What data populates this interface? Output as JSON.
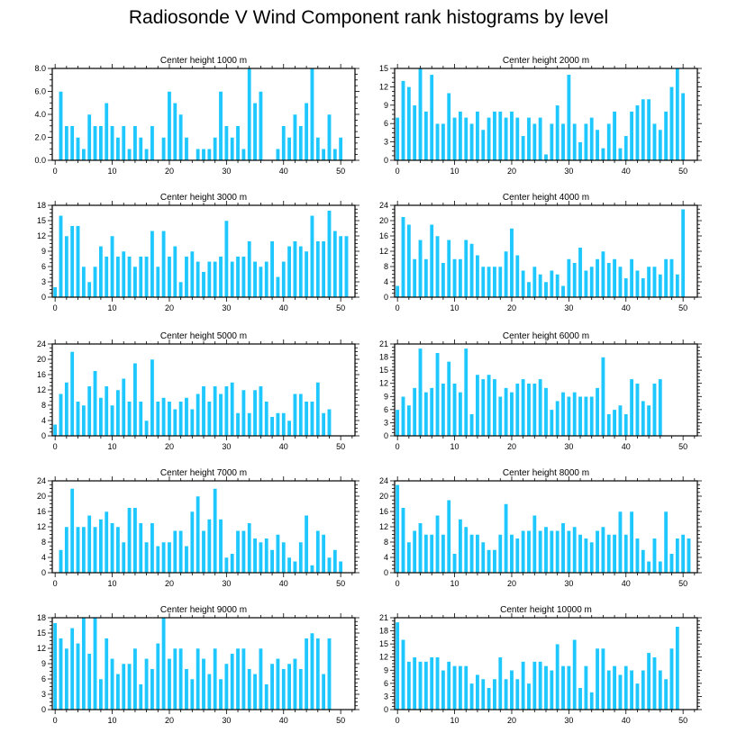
{
  "title": "Radiosonde V Wind Component rank histograms by level",
  "colors": {
    "bar": "#1ec8ff",
    "bar_stroke": "#ffffff",
    "axis": "#000000"
  },
  "chart_data": [
    {
      "type": "bar",
      "title": "Center height 1000 m",
      "ylim": [
        0,
        8
      ],
      "yticks": [
        0,
        2,
        4,
        6,
        8
      ],
      "ytick_labels": [
        "0.0",
        "2.0",
        "4.0",
        "6.0",
        "8.0"
      ],
      "xlim": [
        -0.5,
        52.5
      ],
      "xticks": [
        0,
        10,
        20,
        30,
        40,
        50
      ],
      "values": [
        0,
        6,
        3,
        3,
        2,
        1,
        4,
        3,
        3,
        5,
        3,
        2,
        3,
        1,
        3,
        2,
        1,
        3,
        0,
        2,
        6,
        5,
        4,
        2,
        0,
        1,
        1,
        1,
        2,
        6,
        3,
        2,
        3,
        1,
        8,
        5,
        6,
        0,
        0,
        1,
        3,
        2,
        4,
        3,
        5,
        8,
        2,
        1,
        4,
        1,
        2
      ]
    },
    {
      "type": "bar",
      "title": "Center height 2000 m",
      "ylim": [
        0,
        15
      ],
      "yticks": [
        0,
        3,
        6,
        9,
        12,
        15
      ],
      "ytick_labels": [
        "0",
        "3",
        "6",
        "9",
        "12",
        "15"
      ],
      "xlim": [
        -0.5,
        52.5
      ],
      "xticks": [
        0,
        10,
        20,
        30,
        40,
        50
      ],
      "values": [
        7,
        13,
        12,
        9,
        15,
        8,
        14,
        6,
        6,
        11,
        7,
        8,
        7,
        6,
        8,
        5,
        7,
        8,
        8,
        7,
        8,
        7,
        4,
        7,
        6,
        7,
        1,
        6,
        9,
        6,
        14,
        6,
        3,
        6,
        7,
        5,
        2,
        6,
        8,
        2,
        4,
        8,
        9,
        10,
        10,
        6,
        5,
        8,
        12,
        15,
        11
      ]
    },
    {
      "type": "bar",
      "title": "Center height 3000 m",
      "ylim": [
        0,
        18
      ],
      "yticks": [
        0,
        3,
        6,
        9,
        12,
        15,
        18
      ],
      "ytick_labels": [
        "0",
        "3",
        "6",
        "9",
        "12",
        "15",
        "18"
      ],
      "xlim": [
        -0.5,
        52.5
      ],
      "xticks": [
        0,
        10,
        20,
        30,
        40,
        50
      ],
      "values": [
        2,
        16,
        12,
        14,
        14,
        6,
        3,
        6,
        10,
        8,
        12,
        8,
        9,
        8,
        6,
        8,
        8,
        13,
        6,
        13,
        8,
        10,
        3,
        8,
        9,
        7,
        5,
        7,
        7,
        8,
        15,
        7,
        8,
        8,
        11,
        7,
        6,
        7,
        11,
        4,
        7,
        10,
        11,
        10,
        9,
        16,
        11,
        11,
        17,
        13,
        12,
        12
      ]
    },
    {
      "type": "bar",
      "title": "Center height 4000 m",
      "ylim": [
        0,
        24
      ],
      "yticks": [
        0,
        4,
        8,
        12,
        16,
        20,
        24
      ],
      "ytick_labels": [
        "0",
        "4",
        "8",
        "12",
        "16",
        "20",
        "24"
      ],
      "xlim": [
        -0.5,
        52.5
      ],
      "xticks": [
        0,
        10,
        20,
        30,
        40,
        50
      ],
      "values": [
        3,
        21,
        19,
        10,
        15,
        10,
        19,
        16,
        9,
        15,
        10,
        10,
        15,
        14,
        11,
        8,
        8,
        8,
        8,
        12,
        18,
        11,
        7,
        4,
        8,
        6,
        4,
        7,
        6,
        3,
        10,
        9,
        13,
        7,
        8,
        10,
        12,
        9,
        10,
        8,
        5,
        10,
        7,
        5,
        8,
        8,
        6,
        10,
        10,
        6,
        23
      ]
    },
    {
      "type": "bar",
      "title": "Center height 5000 m",
      "ylim": [
        0,
        24
      ],
      "yticks": [
        0,
        4,
        8,
        12,
        16,
        20,
        24
      ],
      "ytick_labels": [
        "0",
        "4",
        "8",
        "12",
        "16",
        "20",
        "24"
      ],
      "xlim": [
        -0.5,
        52.5
      ],
      "xticks": [
        0,
        10,
        20,
        30,
        40,
        50
      ],
      "values": [
        3,
        11,
        14,
        22,
        9,
        8,
        13,
        17,
        10,
        13,
        8,
        12,
        15,
        9,
        19,
        9,
        4,
        20,
        9,
        10,
        9,
        7,
        9,
        10,
        7,
        11,
        13,
        9,
        13,
        11,
        13,
        14,
        6,
        12,
        6,
        12,
        13,
        9,
        5,
        6,
        6,
        4,
        11,
        11,
        9,
        9,
        14,
        6,
        7
      ]
    },
    {
      "type": "bar",
      "title": "Center height 6000 m",
      "ylim": [
        0,
        21
      ],
      "yticks": [
        0,
        3,
        6,
        9,
        12,
        15,
        18,
        21
      ],
      "ytick_labels": [
        "0",
        "3",
        "6",
        "9",
        "12",
        "15",
        "18",
        "21"
      ],
      "xlim": [
        -0.5,
        52.5
      ],
      "xticks": [
        0,
        10,
        20,
        30,
        40,
        50
      ],
      "values": [
        6,
        9,
        7,
        11,
        20,
        10,
        11,
        19,
        12,
        17,
        12,
        10,
        20,
        5,
        14,
        13,
        14,
        13,
        9,
        11,
        10,
        12,
        13,
        12,
        12,
        13,
        11,
        6,
        8,
        10,
        9,
        10,
        9,
        9,
        9,
        11,
        18,
        5,
        6,
        7,
        5,
        13,
        12,
        8,
        7,
        12,
        13
      ]
    },
    {
      "type": "bar",
      "title": "Center height 7000 m",
      "ylim": [
        0,
        24
      ],
      "yticks": [
        0,
        4,
        8,
        12,
        16,
        20,
        24
      ],
      "ytick_labels": [
        "0",
        "4",
        "8",
        "12",
        "16",
        "20",
        "24"
      ],
      "xlim": [
        -0.5,
        52.5
      ],
      "xticks": [
        0,
        10,
        20,
        30,
        40,
        50
      ],
      "values": [
        0,
        6,
        12,
        22,
        12,
        12,
        15,
        12,
        14,
        16,
        13,
        12,
        8,
        17,
        17,
        13,
        8,
        13,
        7,
        8,
        8,
        11,
        11,
        7,
        16,
        20,
        11,
        14,
        22,
        14,
        4,
        5,
        11,
        11,
        13,
        9,
        8,
        9,
        6,
        10,
        8,
        4,
        3,
        8,
        15,
        2,
        11,
        10,
        4,
        6,
        3
      ]
    },
    {
      "type": "bar",
      "title": "Center height 8000 m",
      "ylim": [
        0,
        24
      ],
      "yticks": [
        0,
        4,
        8,
        12,
        16,
        20,
        24
      ],
      "ytick_labels": [
        "0",
        "4",
        "8",
        "12",
        "16",
        "20",
        "24"
      ],
      "xlim": [
        -0.5,
        52.5
      ],
      "xticks": [
        0,
        10,
        20,
        30,
        40,
        50
      ],
      "values": [
        23,
        17,
        8,
        11,
        13,
        10,
        10,
        15,
        10,
        19,
        5,
        14,
        12,
        10,
        10,
        8,
        6,
        6,
        10,
        18,
        10,
        9,
        11,
        11,
        15,
        11,
        12,
        11,
        11,
        13,
        11,
        12,
        10,
        9,
        8,
        11,
        12,
        10,
        10,
        16,
        10,
        16,
        9,
        6,
        3,
        9,
        3,
        16,
        5,
        9,
        10,
        9
      ]
    },
    {
      "type": "bar",
      "title": "Center height 9000 m",
      "ylim": [
        0,
        18
      ],
      "yticks": [
        0,
        3,
        6,
        9,
        12,
        15,
        18
      ],
      "ytick_labels": [
        "0",
        "3",
        "6",
        "9",
        "12",
        "15",
        "18"
      ],
      "xlim": [
        -0.5,
        52.5
      ],
      "xticks": [
        0,
        10,
        20,
        30,
        40,
        50
      ],
      "values": [
        17,
        14,
        12,
        16,
        13,
        18,
        11,
        18,
        6,
        14,
        10,
        7,
        9,
        9,
        12,
        5,
        10,
        8,
        13,
        18,
        10,
        12,
        12,
        8,
        6,
        12,
        10,
        7,
        12,
        6,
        9,
        11,
        12,
        12,
        8,
        7,
        12,
        5,
        9,
        10,
        8,
        9,
        10,
        8,
        14,
        15,
        14,
        7,
        14
      ]
    },
    {
      "type": "bar",
      "title": "Center height 10000 m",
      "ylim": [
        0,
        21
      ],
      "yticks": [
        0,
        3,
        6,
        9,
        12,
        15,
        18,
        21
      ],
      "ytick_labels": [
        "0",
        "3",
        "6",
        "9",
        "12",
        "15",
        "18",
        "21"
      ],
      "xlim": [
        -0.5,
        52.5
      ],
      "xticks": [
        0,
        10,
        20,
        30,
        40,
        50
      ],
      "values": [
        20,
        16,
        11,
        12,
        11,
        11,
        12,
        12,
        9,
        11,
        10,
        10,
        10,
        6,
        8,
        7,
        5,
        7,
        12,
        7,
        9,
        7,
        11,
        6,
        11,
        11,
        10,
        9,
        15,
        10,
        10,
        16,
        5,
        10,
        4,
        14,
        14,
        9,
        10,
        8,
        10,
        9,
        6,
        9,
        13,
        12,
        9,
        7,
        14,
        19
      ]
    }
  ]
}
